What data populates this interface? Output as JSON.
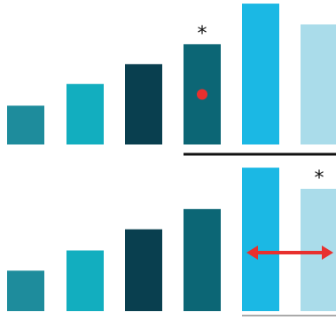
{
  "chart_data": [
    {
      "type": "bar",
      "categories": [
        "",
        "",
        "",
        "",
        "",
        ""
      ],
      "values": [
        43,
        67,
        89,
        111,
        156,
        133
      ],
      "ylim": [
        0,
        160
      ],
      "colors": [
        "#1e8c9c",
        "#12aebf",
        "#093f4f",
        "#0c6675",
        "#1bb8e4",
        "#aadcea"
      ],
      "annotations": [
        {
          "category_index": 3,
          "text": "*"
        },
        {
          "category_index": 3,
          "marker": "red-dot"
        }
      ],
      "baseline_under_categories": [
        3,
        5
      ],
      "grid": false,
      "legend": "none"
    },
    {
      "type": "bar",
      "categories": [
        "",
        "",
        "",
        "",
        "",
        ""
      ],
      "values": [
        44,
        66,
        89,
        111,
        156,
        133
      ],
      "ylim": [
        0,
        160
      ],
      "colors": [
        "#1e8c9c",
        "#12aebf",
        "#093f4f",
        "#0c6675",
        "#1bb8e4",
        "#aadcea"
      ],
      "annotations": [
        {
          "category_index": 5,
          "text": "*"
        },
        {
          "between_categories": [
            4,
            5
          ],
          "marker": "double-arrow"
        }
      ],
      "baseline_under_categories": [
        4,
        5
      ],
      "grid": false,
      "legend": "none"
    }
  ],
  "marker_color": "#e8302e"
}
